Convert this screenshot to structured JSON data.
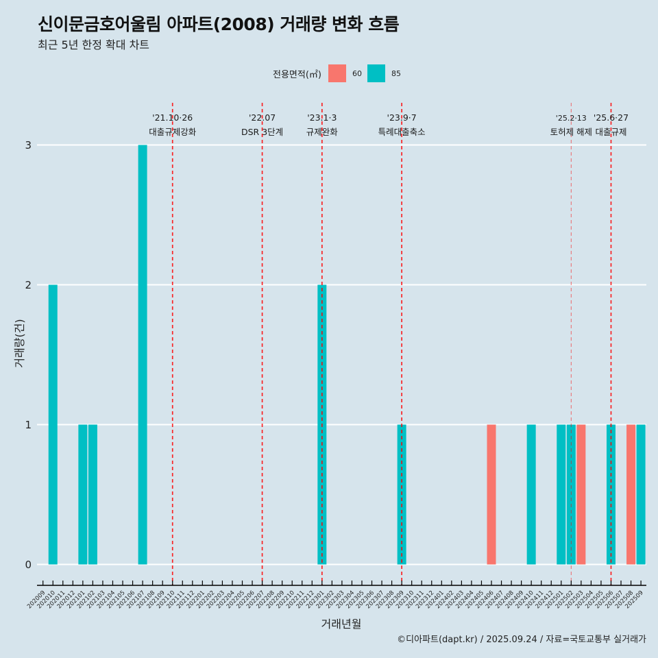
{
  "chart_data": {
    "type": "bar",
    "stacked": true,
    "title": "신이문금호어울림 아파트(2008) 거래량 변화 흐름",
    "subtitle": "최근 5년 한정 확대 차트",
    "xlabel": "거래년월",
    "ylabel": "거래량(건)",
    "ylim": [
      0,
      3
    ],
    "yticks": [
      0,
      1,
      2,
      3
    ],
    "ytick_labels": [
      "0",
      "1",
      "2",
      "3"
    ],
    "grid": true,
    "legend": {
      "title": "전용면적(㎡)",
      "position": "top",
      "entries": [
        {
          "label": "60",
          "color": "#F8766D"
        },
        {
          "label": "85",
          "color": "#00BFC4"
        }
      ]
    },
    "categories": [
      "202009",
      "202010",
      "202011",
      "202012",
      "202101",
      "202102",
      "202103",
      "202104",
      "202105",
      "202106",
      "202107",
      "202108",
      "202109",
      "202110",
      "202111",
      "202112",
      "202201",
      "202202",
      "202203",
      "202204",
      "202205",
      "202206",
      "202207",
      "202208",
      "202209",
      "202210",
      "202211",
      "202212",
      "202301",
      "202302",
      "202303",
      "202304",
      "202305",
      "202306",
      "202307",
      "202308",
      "202309",
      "202310",
      "202311",
      "202312",
      "202401",
      "202402",
      "202403",
      "202404",
      "202405",
      "202406",
      "202407",
      "202408",
      "202409",
      "202410",
      "202411",
      "202412",
      "202501",
      "202502",
      "202503",
      "202504",
      "202505",
      "202506",
      "202507",
      "202508",
      "202509"
    ],
    "series": [
      {
        "name": "60",
        "color": "#F8766D",
        "values": [
          0,
          0,
          0,
          0,
          0,
          0,
          0,
          0,
          0,
          0,
          0,
          0,
          0,
          0,
          0,
          0,
          0,
          0,
          0,
          0,
          0,
          0,
          0,
          0,
          0,
          0,
          0,
          0,
          0,
          0,
          0,
          0,
          0,
          0,
          0,
          0,
          0,
          0,
          0,
          0,
          0,
          0,
          0,
          0,
          0,
          1,
          0,
          0,
          0,
          0,
          0,
          0,
          0,
          0,
          1,
          0,
          0,
          0,
          0,
          1,
          0
        ]
      },
      {
        "name": "85",
        "color": "#00BFC4",
        "values": [
          0,
          2,
          0,
          0,
          1,
          1,
          0,
          0,
          0,
          0,
          3,
          0,
          0,
          0,
          0,
          0,
          0,
          0,
          0,
          0,
          0,
          0,
          0,
          0,
          0,
          0,
          0,
          0,
          2,
          0,
          0,
          0,
          0,
          0,
          0,
          0,
          1,
          0,
          0,
          0,
          0,
          0,
          0,
          0,
          0,
          0,
          0,
          0,
          0,
          1,
          0,
          0,
          1,
          1,
          0,
          0,
          0,
          1,
          0,
          0,
          1
        ]
      }
    ],
    "annotations": [
      {
        "x": "202110",
        "date": "'21.10·26",
        "label": "대출규제강화",
        "emphasis": "strong"
      },
      {
        "x": "202207",
        "date": "'22.07",
        "label": "DSR 3단계",
        "emphasis": "strong"
      },
      {
        "x": "202301",
        "date": "'23.1·3",
        "label": "규제완화",
        "emphasis": "strong"
      },
      {
        "x": "202309",
        "date": "'23.9·7",
        "label": "특례대출축소",
        "emphasis": "strong"
      },
      {
        "x": "202502",
        "date": "'25.2·13",
        "label": "토허제 해제",
        "emphasis": "minor"
      },
      {
        "x": "202506",
        "date": "'25.6·27",
        "label": "대출규제",
        "emphasis": "strong"
      }
    ],
    "annotation_line_color": "#FF0000",
    "caption": "©디아파트(dapt.kr) / 2025.09.24 / 자료=국토교통부 실거래가"
  },
  "colors": {
    "background": "#D6E4EC",
    "gridline": "#FFFFFF",
    "axis": "#000000"
  }
}
